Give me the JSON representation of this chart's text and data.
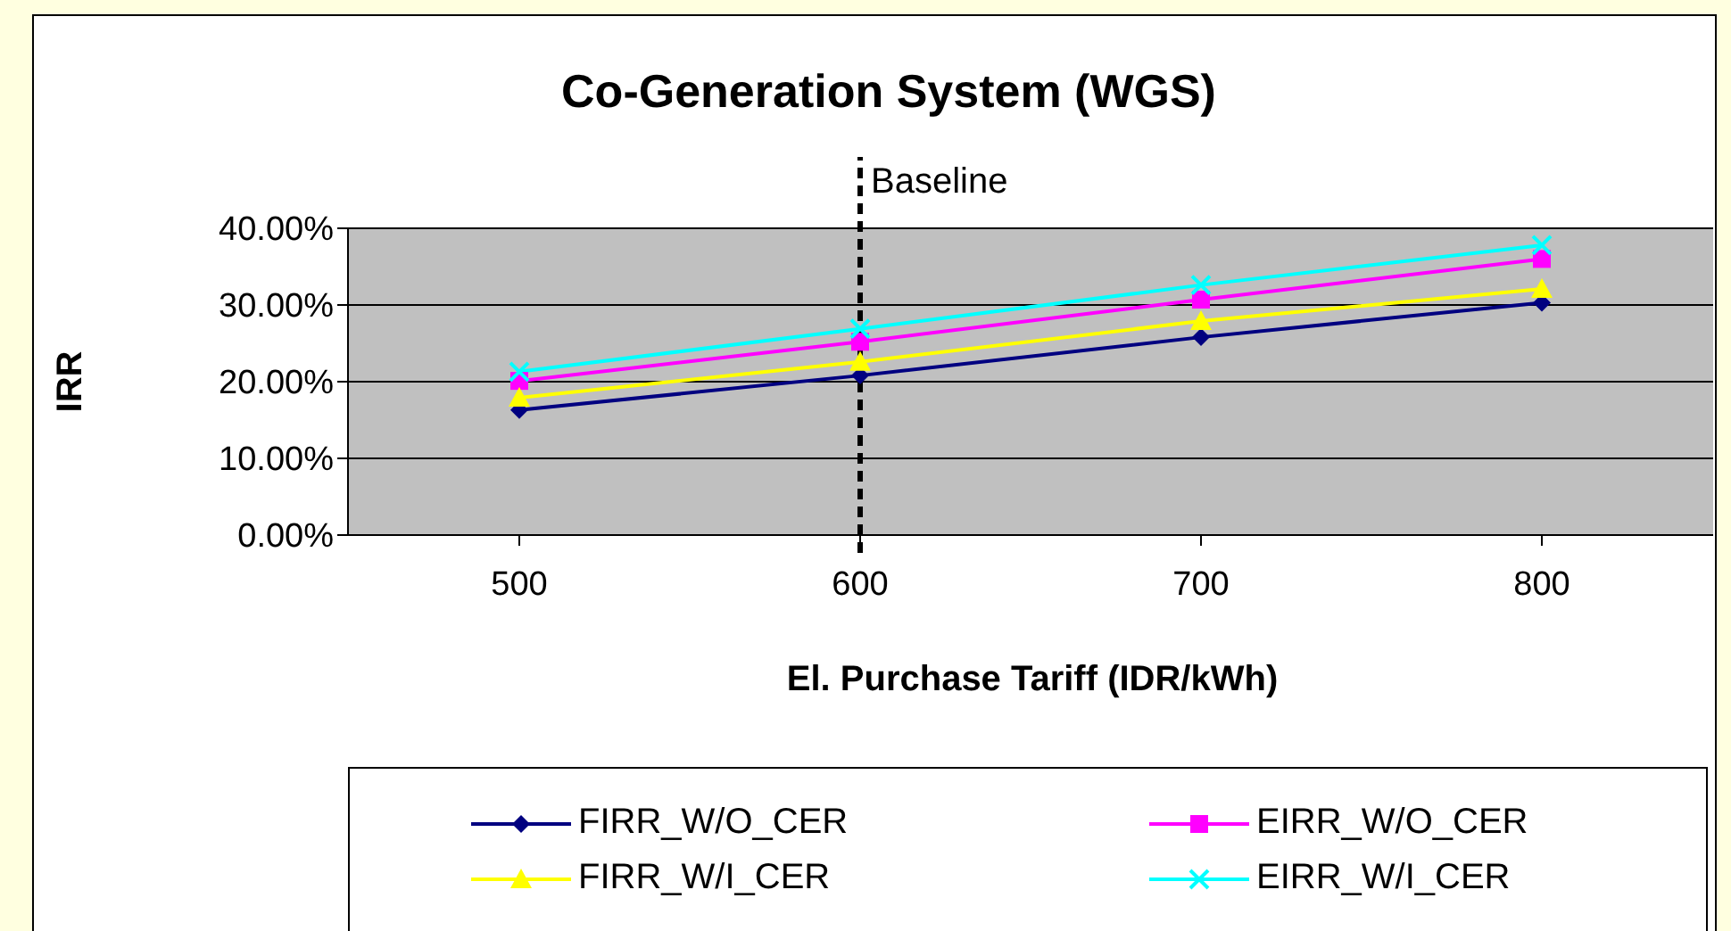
{
  "chart_data": {
    "type": "line",
    "title": "Co-Generation System (WGS)",
    "xlabel": "El. Purchase Tariff (IDR/kWh)",
    "ylabel": "IRR",
    "categories": [
      "500",
      "600",
      "700",
      "800"
    ],
    "series": [
      {
        "name": "FIRR_W/O_CER",
        "color": "#000080",
        "marker": "diamond",
        "values": [
          16.3,
          20.8,
          25.8,
          30.3
        ]
      },
      {
        "name": "EIRR_W/O_CER",
        "color": "#ff00ff",
        "marker": "square",
        "values": [
          20.1,
          25.2,
          30.7,
          36.0
        ]
      },
      {
        "name": "FIRR_W/I_CER",
        "color": "#ffff00",
        "marker": "triangle",
        "values": [
          17.9,
          22.6,
          27.9,
          32.1
        ]
      },
      {
        "name": "EIRR_W/I_CER",
        "color": "#00ffff",
        "marker": "cross",
        "values": [
          21.3,
          26.9,
          32.6,
          37.8
        ]
      }
    ],
    "ylim": [
      0,
      40
    ],
    "yticks": [
      {
        "value": 0,
        "label": "0.00%"
      },
      {
        "value": 10,
        "label": "10.00%"
      },
      {
        "value": 20,
        "label": "20.00%"
      },
      {
        "value": 30,
        "label": "30.00%"
      },
      {
        "value": 40,
        "label": "40.00%"
      }
    ],
    "ref_lines": [
      {
        "axis": "x",
        "value": "600",
        "label": "Baseline",
        "color": "#000000",
        "line_style": "dashed"
      }
    ],
    "grid": "y",
    "legend": "bottom",
    "line_style": "solid"
  }
}
